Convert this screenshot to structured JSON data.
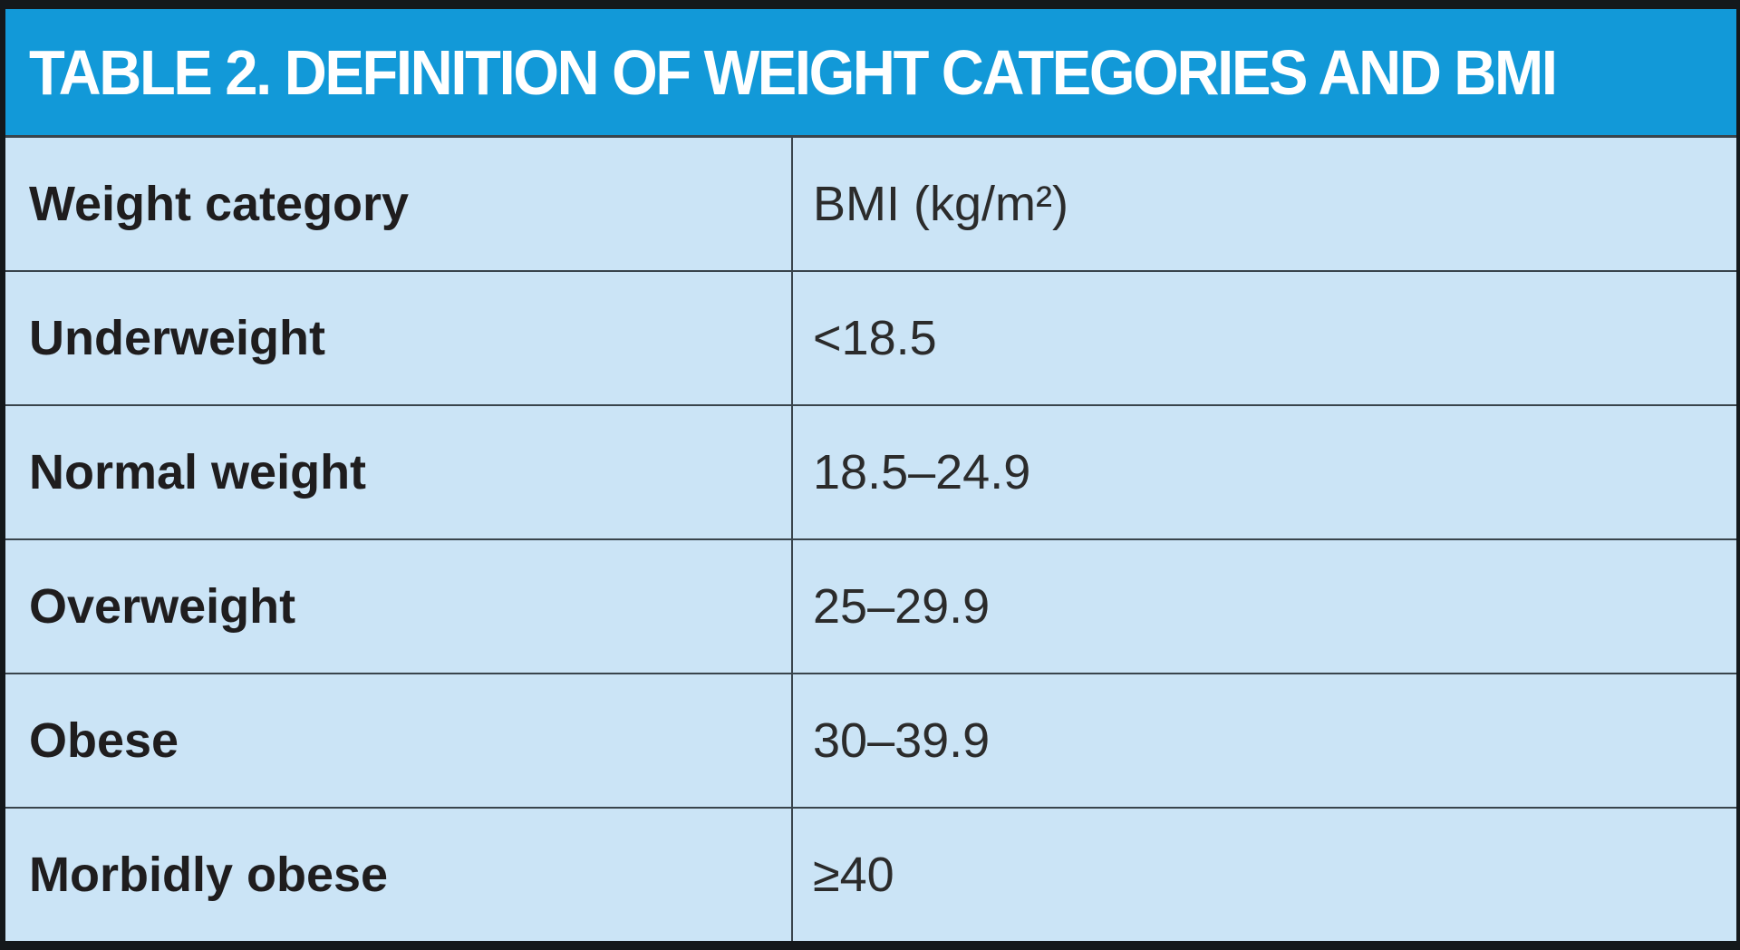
{
  "table": {
    "title": "TABLE 2. DEFINITION OF WEIGHT CATEGORIES AND BMI",
    "columns": [
      "Weight category",
      "BMI (kg/m²)"
    ],
    "rows": [
      {
        "category": "Underweight",
        "bmi": "<18.5"
      },
      {
        "category": "Normal weight",
        "bmi": "18.5–24.9"
      },
      {
        "category": "Overweight",
        "bmi": "25–29.9"
      },
      {
        "category": "Obese",
        "bmi": "30–39.9"
      },
      {
        "category": "Morbidly obese",
        "bmi": "≥40"
      }
    ]
  },
  "colors": {
    "header_bg": "#1299d8",
    "row_bg": "#cbe4f6",
    "border": "#14181b",
    "grid_line": "#39444c",
    "title_text": "#ffffff",
    "body_text": "#2b2b2b",
    "category_text": "#1f1d1e"
  }
}
